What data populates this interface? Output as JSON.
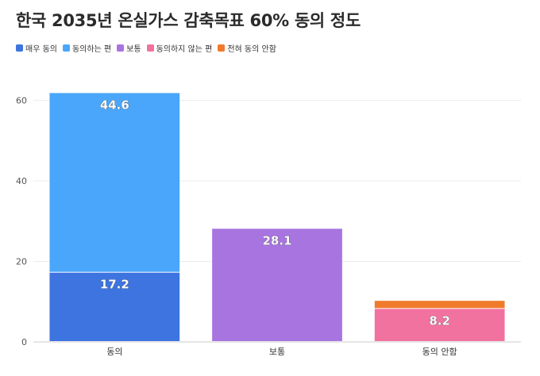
{
  "chart_data": {
    "type": "bar",
    "stacked": true,
    "title": "한국 2035년 온실가스 감축목표 60% 동의 정도",
    "categories": [
      "동의",
      "보통",
      "동의 안함"
    ],
    "series": [
      {
        "name": "매우 동의",
        "color": "#3d74e0",
        "values": [
          17.2,
          0,
          0
        ],
        "labels": [
          "17.2",
          "",
          ""
        ]
      },
      {
        "name": "동의하는 편",
        "color": "#4aa6fb",
        "values": [
          44.6,
          0,
          0
        ],
        "labels": [
          "44.6",
          "",
          ""
        ]
      },
      {
        "name": "보통",
        "color": "#a874e0",
        "values": [
          0,
          28.1,
          0
        ],
        "labels": [
          "",
          "28.1",
          ""
        ]
      },
      {
        "name": "동의하지 않는 편",
        "color": "#f2729f",
        "values": [
          0,
          0,
          8.2
        ],
        "labels": [
          "",
          "",
          "8.2"
        ]
      },
      {
        "name": "전혀 동의 안함",
        "color": "#f07a2c",
        "values": [
          0,
          0,
          2.0
        ],
        "labels": [
          "",
          "",
          ""
        ]
      }
    ],
    "yticks": [
      0,
      20,
      40,
      60
    ],
    "ylim": [
      0,
      66
    ],
    "grid": true,
    "legend_position": "top-left"
  }
}
